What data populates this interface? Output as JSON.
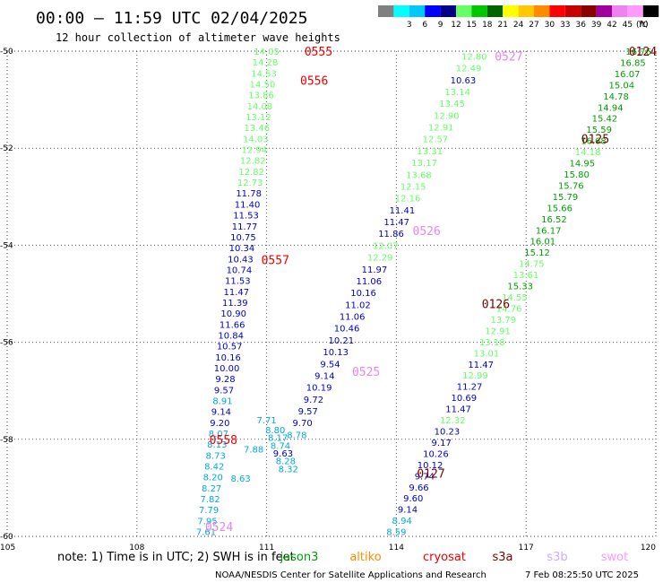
{
  "header": {
    "title": "00:00 – 11:59 UTC 02/04/2025",
    "subtitle": "12 hour collection of altimeter wave heights"
  },
  "legend": {
    "unit": "(ft)",
    "swatches": [
      {
        "color": "#808080",
        "label": ""
      },
      {
        "color": "#00ffff",
        "label": "3"
      },
      {
        "color": "#00c8ff",
        "label": "6"
      },
      {
        "color": "#0000ff",
        "label": "9"
      },
      {
        "color": "#00008b",
        "label": "12"
      },
      {
        "color": "#66ff66",
        "label": "15"
      },
      {
        "color": "#00c800",
        "label": "18"
      },
      {
        "color": "#006400",
        "label": "21"
      },
      {
        "color": "#ffff00",
        "label": "24"
      },
      {
        "color": "#ffc800",
        "label": "27"
      },
      {
        "color": "#ff8c00",
        "label": "30"
      },
      {
        "color": "#ff0000",
        "label": "33"
      },
      {
        "color": "#c80000",
        "label": "36"
      },
      {
        "color": "#8b0000",
        "label": "39"
      },
      {
        "color": "#a000a0",
        "label": "42"
      },
      {
        "color": "#ee82ee",
        "label": "45"
      },
      {
        "color": "#ff99ff",
        "label": "70"
      },
      {
        "color": "#000000",
        "label": ""
      }
    ]
  },
  "map": {
    "lon_min": 105,
    "lon_max": 120,
    "lat_min": -60,
    "lat_max": -50,
    "lon_ticks": [
      105,
      108,
      111,
      114,
      117,
      120
    ],
    "lat_ticks": [
      -50,
      -52,
      -54,
      -56,
      -58,
      -60
    ],
    "lon_labels": [
      "105",
      "108",
      "111",
      "114",
      "117",
      "120"
    ],
    "lat_labels": [
      "-50",
      "-52",
      "-54",
      "-56",
      "-58",
      "-60"
    ],
    "grid": true
  },
  "tracks": [
    {
      "name": "T1",
      "lon_start": 111.0,
      "lat_start": -50.0,
      "lon_end": 109.6,
      "lat_end": -59.9,
      "values": [
        "14.05",
        "14.28",
        "14.53",
        "14.50",
        "13.86",
        "14.08",
        "13.12",
        "13.46",
        "14.03",
        "12.94",
        "12.82",
        "12.82",
        "12.73",
        "11.78",
        "11.40",
        "11.53",
        "11.77",
        "10.75",
        "10.34",
        "10.43",
        "10.74",
        "11.53",
        "11.47",
        "11.39",
        "10.90",
        "11.66",
        "10.84",
        "10.57",
        "10.16",
        "10.00",
        "9.28",
        "9.57",
        "8.91",
        "9.14",
        "9.20",
        "8.07",
        "8.13",
        "8.73",
        "8.42",
        "8.20",
        "8.27",
        "7.82",
        "7.79",
        "7.95",
        "7.61"
      ],
      "colors": [
        "#66ff66",
        "#66ff66",
        "#66ff66",
        "#66ff66",
        "#66ff66",
        "#66ff66",
        "#66ff66",
        "#66ff66",
        "#66ff66",
        "#66ff66",
        "#66ff66",
        "#66ff66",
        "#66ff66",
        "#0000cc",
        "#0000cc",
        "#0000cc",
        "#0000cc",
        "#0000cc",
        "#0000cc",
        "#0000cc",
        "#0000cc",
        "#0000cc",
        "#0000cc",
        "#0000cc",
        "#0000cc",
        "#0000cc",
        "#0000cc",
        "#0000cc",
        "#0000cc",
        "#0000cc",
        "#0000cc",
        "#0000cc",
        "#00aadd",
        "#0000cc",
        "#0000cc",
        "#00aadd",
        "#00aadd",
        "#00aadd",
        "#00aadd",
        "#00aadd",
        "#00aadd",
        "#00aadd",
        "#00aadd",
        "#00aadd",
        "#00aadd"
      ]
    },
    {
      "name": "T2",
      "lon_start": 110.4,
      "lat_start": -58.8,
      "lon_end": 111.0,
      "lat_end": -57.6,
      "values": [
        "8.63",
        "7.88",
        "7.71"
      ],
      "colors": [
        "#00aadd",
        "#00aadd",
        "#00aadd"
      ]
    },
    {
      "name": "T3",
      "lon_start": 111.2,
      "lat_start": -57.8,
      "lon_end": 111.5,
      "lat_end": -58.6,
      "values": [
        "8.80",
        "8.17",
        "8.74",
        "9.63",
        "8.28",
        "8.32"
      ],
      "colors": [
        "#00aadd",
        "#00aadd",
        "#00aadd",
        "#0000cc",
        "#00aadd",
        "#00aadd"
      ]
    },
    {
      "name": "T4",
      "lon_start": 115.8,
      "lat_start": -50.1,
      "lon_end": 111.7,
      "lat_end": -57.9,
      "values": [
        "12.80",
        "12.49",
        "10.63",
        "13.14",
        "13.45",
        "12.90",
        "12.91",
        "12.57",
        "13.31",
        "13.17",
        "13.68",
        "12.15",
        "12.16",
        "11.41",
        "11.47",
        "11.86",
        "12.07",
        "12.29",
        "11.97",
        "11.06",
        "10.16",
        "11.02",
        "11.06",
        "10.46",
        "10.21",
        "10.13",
        "9.54",
        "9.14",
        "10.19",
        "9.72",
        "9.57",
        "9.70",
        "8.78"
      ],
      "colors": [
        "#66ff66",
        "#66ff66",
        "#0000cc",
        "#66ff66",
        "#66ff66",
        "#66ff66",
        "#66ff66",
        "#66ff66",
        "#66ff66",
        "#66ff66",
        "#66ff66",
        "#66ff66",
        "#66ff66",
        "#0000cc",
        "#0000cc",
        "#0000cc",
        "#66ff66",
        "#66ff66",
        "#0000cc",
        "#0000cc",
        "#0000cc",
        "#0000cc",
        "#0000cc",
        "#0000cc",
        "#0000cc",
        "#0000cc",
        "#0000cc",
        "#0000cc",
        "#0000cc",
        "#0000cc",
        "#0000cc",
        "#0000cc",
        "#00aadd"
      ]
    },
    {
      "name": "T5",
      "lon_start": 119.6,
      "lat_start": -50.0,
      "lon_end": 114.0,
      "lat_end": -59.9,
      "values": [
        "16.76",
        "16.85",
        "16.07",
        "15.04",
        "14.78",
        "14.94",
        "15.42",
        "15.59",
        "16.68",
        "14.18",
        "14.95",
        "15.80",
        "15.76",
        "15.79",
        "15.66",
        "16.52",
        "16.17",
        "16.01",
        "15.12",
        "14.75",
        "13.61",
        "15.33",
        "14.55",
        "14.76",
        "13.79",
        "12.91",
        "13.18",
        "13.01",
        "11.47",
        "12.99",
        "11.27",
        "10.69",
        "11.47",
        "12.32",
        "10.23",
        "9.17",
        "10.26",
        "10.12",
        "9.74",
        "9.66",
        "9.60",
        "9.14",
        "8.94",
        "8.59"
      ],
      "colors": [
        "#00a000",
        "#00a000",
        "#00a000",
        "#00a000",
        "#00a000",
        "#00a000",
        "#00a000",
        "#00a000",
        "#00a000",
        "#66ff66",
        "#00a000",
        "#00a000",
        "#00a000",
        "#00a000",
        "#00a000",
        "#00a000",
        "#00a000",
        "#00a000",
        "#00a000",
        "#66ff66",
        "#66ff66",
        "#00a000",
        "#66ff66",
        "#66ff66",
        "#66ff66",
        "#66ff66",
        "#66ff66",
        "#66ff66",
        "#0000cc",
        "#66ff66",
        "#0000cc",
        "#0000cc",
        "#0000cc",
        "#66ff66",
        "#0000cc",
        "#0000cc",
        "#0000cc",
        "#0000cc",
        "#0000cc",
        "#0000cc",
        "#0000cc",
        "#0000cc",
        "#00aadd",
        "#00aadd"
      ]
    }
  ],
  "time_labels": [
    {
      "text": "0555",
      "lon": 112.2,
      "lat": -50.0,
      "color": "#ee0000"
    },
    {
      "text": "0556",
      "lon": 112.1,
      "lat": -50.6,
      "color": "#ee0000"
    },
    {
      "text": "0557",
      "lon": 111.2,
      "lat": -54.3,
      "color": "#ee0000"
    },
    {
      "text": "0558",
      "lon": 110.0,
      "lat": -58.0,
      "color": "#ee0000"
    },
    {
      "text": "0524",
      "lon": 109.9,
      "lat": -59.8,
      "color": "#ee82ee"
    },
    {
      "text": "0527",
      "lon": 116.6,
      "lat": -50.1,
      "color": "#ee82ee"
    },
    {
      "text": "0526",
      "lon": 114.7,
      "lat": -53.7,
      "color": "#ee82ee"
    },
    {
      "text": "0525",
      "lon": 113.3,
      "lat": -56.6,
      "color": "#ee82ee"
    },
    {
      "text": "0124",
      "lon": 119.7,
      "lat": -50.0,
      "color": "#7a0000"
    },
    {
      "text": "0125",
      "lon": 118.6,
      "lat": -51.8,
      "color": "#7a0000"
    },
    {
      "text": "0126",
      "lon": 116.3,
      "lat": -55.2,
      "color": "#7a0000"
    },
    {
      "text": "0127",
      "lon": 114.8,
      "lat": -58.7,
      "color": "#7a0000"
    }
  ],
  "footer": {
    "note": "note:  1) Time is in UTC; 2) SWH is in feet",
    "satellites": [
      {
        "name": "jason3",
        "color": "#00a000"
      },
      {
        "name": "altiko",
        "color": "#ff8c00"
      },
      {
        "name": "cryosat",
        "color": "#ee0000"
      },
      {
        "name": "s3a",
        "color": "#7a0000"
      },
      {
        "name": "s3b",
        "color": "#ccaaff"
      },
      {
        "name": "swot",
        "color": "#ff99ff"
      }
    ],
    "credit": "NOAA/NESDIS Center for Satellite Applications and Research",
    "timestamp": "7 Feb 08:25:50 UTC 2025"
  }
}
